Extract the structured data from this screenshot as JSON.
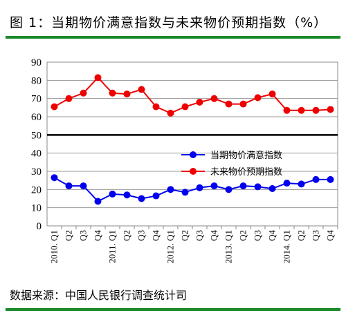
{
  "header": {
    "title": "图 1：当期物价满意指数与未来物价预期指数（%）"
  },
  "footer": {
    "source": "数据来源：中国人民银行调查统计司"
  },
  "colors": {
    "accent": "#1a8a2a",
    "series1": "#0000ee",
    "series2": "#ee0000"
  },
  "chart_data": {
    "type": "line",
    "title": "",
    "xlabel": "",
    "ylabel": "",
    "ylim": [
      0,
      90
    ],
    "yticks": [
      0,
      10,
      20,
      30,
      40,
      50,
      60,
      70,
      80,
      90
    ],
    "grid": true,
    "legend_position": "center-right",
    "categories": [
      "2010. Q1",
      "Q2",
      "Q3",
      "Q4",
      "2011. Q1",
      "Q2",
      "Q3",
      "Q4",
      "2012. Q1",
      "Q2",
      "Q3",
      "Q4",
      "2013. Q1",
      "Q2",
      "Q3",
      "Q4",
      "2014. Q1",
      "Q2",
      "Q3",
      "Q4"
    ],
    "series": [
      {
        "name": "当期物价满意指数",
        "color": "#0000ee",
        "values": [
          26.5,
          22,
          22,
          13.5,
          17.5,
          17,
          15,
          16.5,
          20,
          18.5,
          21,
          22,
          20,
          22,
          21.5,
          20.5,
          23.5,
          23,
          25.5,
          25.5
        ]
      },
      {
        "name": "未来物价预期指数",
        "color": "#ee0000",
        "values": [
          65.5,
          70,
          73,
          81.5,
          73,
          72.5,
          75,
          65.5,
          62,
          65.5,
          68,
          70,
          67,
          67,
          70.5,
          72.5,
          63.5,
          63.5,
          63.5,
          64
        ]
      }
    ]
  }
}
